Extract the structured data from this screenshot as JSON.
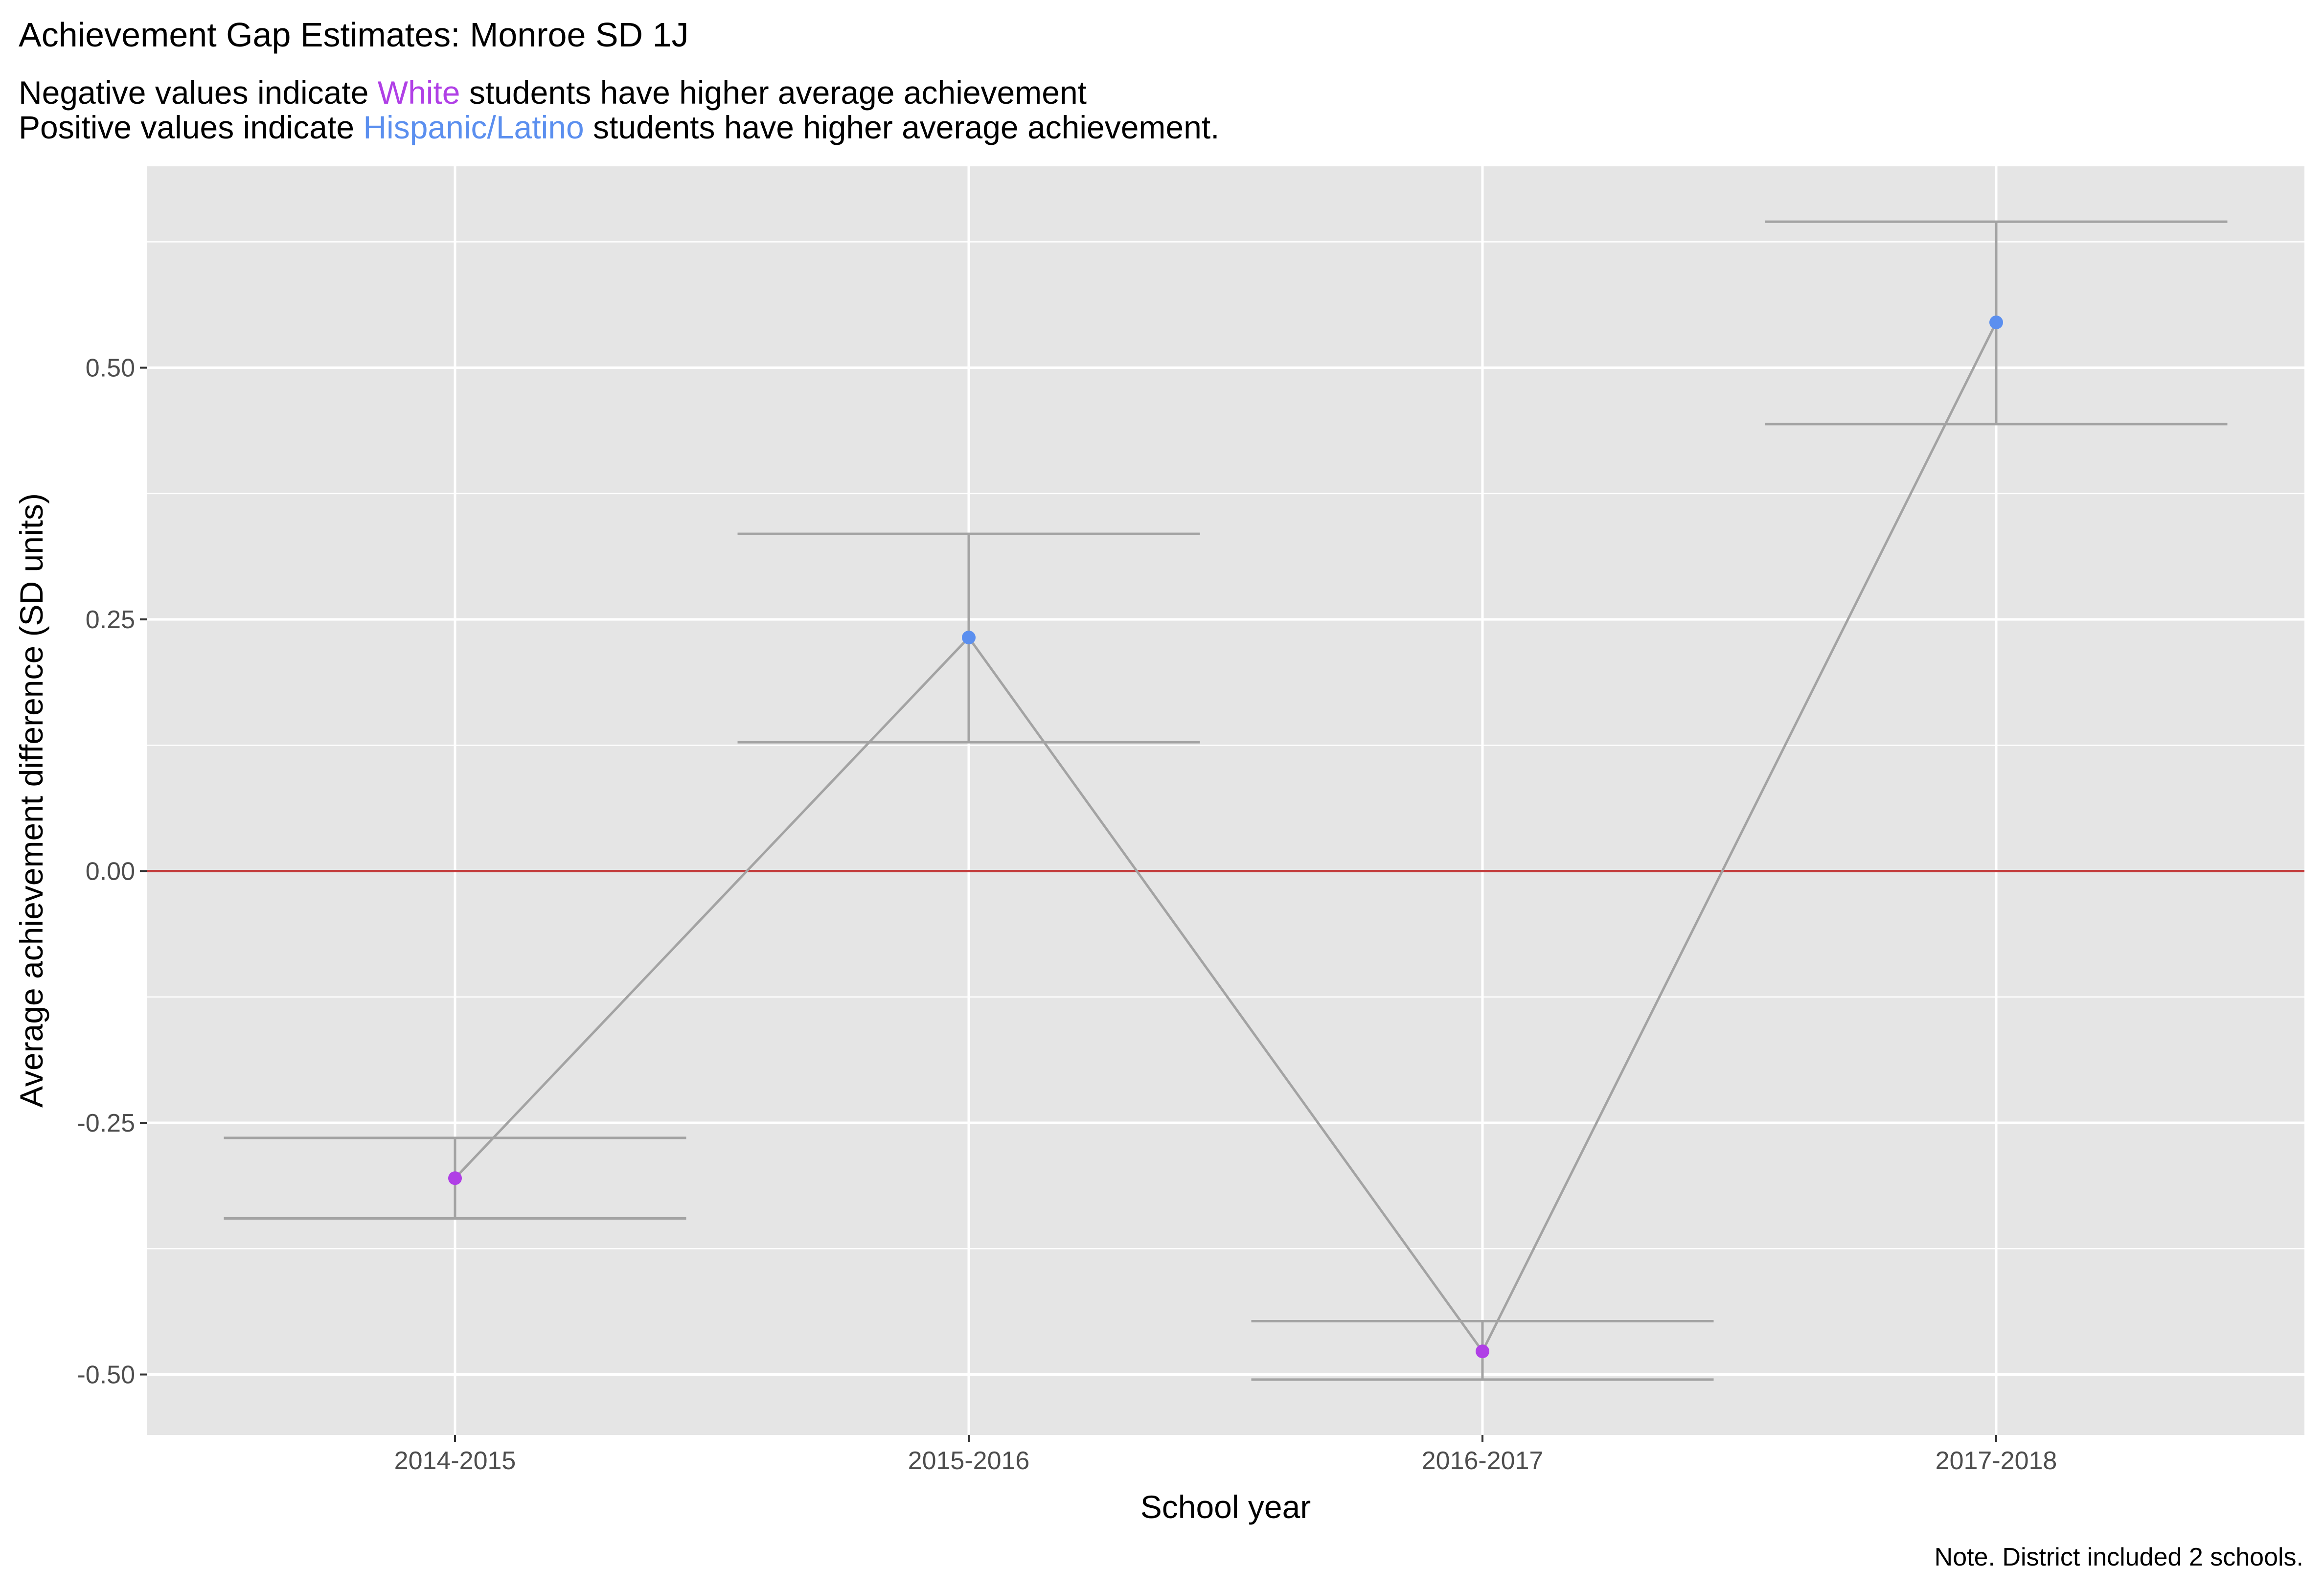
{
  "chart_data": {
    "type": "scatter",
    "title": "Achievement Gap Estimates: Monroe SD 1J",
    "subtitle": {
      "line1": {
        "prefix": "Negative values indicate ",
        "group": "White",
        "suffix": " students have higher average achievement"
      },
      "line2": {
        "prefix": "Positive values indicate ",
        "group": "Hispanic/Latino",
        "suffix": " students have higher average achievement."
      }
    },
    "xlabel": "School year",
    "ylabel": "Average achievement difference (SD units)",
    "caption": "Note. District included 2 schools.",
    "categories": [
      "2014-2015",
      "2015-2016",
      "2016-2017",
      "2017-2018"
    ],
    "values": [
      -0.305,
      0.232,
      -0.477,
      0.545
    ],
    "ci_lower": [
      -0.345,
      0.128,
      -0.505,
      0.444
    ],
    "ci_upper": [
      -0.265,
      0.335,
      -0.447,
      0.645
    ],
    "point_groups": [
      "White",
      "Hispanic/Latino",
      "White",
      "Hispanic/Latino"
    ],
    "ylim": [
      -0.56,
      0.7
    ],
    "yticks": [
      -0.5,
      -0.25,
      0,
      0.25,
      0.5
    ],
    "ytick_labels": [
      "-0.50",
      "-0.25",
      "0.00",
      "0.25",
      "0.50"
    ],
    "reference_line": 0,
    "grid": true,
    "legend": "none",
    "colors": {
      "white_group": "#B03FE6",
      "hispanic_group": "#5B8FEF",
      "panel_bg": "#E5E5E5",
      "gridline": "#FFFFFF",
      "series_line": "#A3A3A3",
      "reference_line": "#C23B3B"
    }
  }
}
